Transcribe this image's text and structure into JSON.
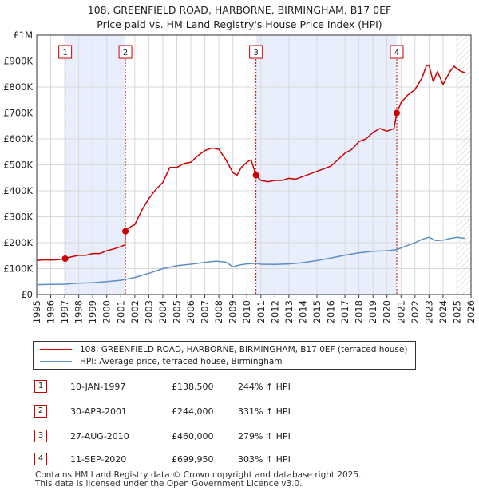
{
  "title_line1": "108, GREENFIELD ROAD, HARBORNE, BIRMINGHAM, B17 0EF",
  "title_line2": "Price paid vs. HM Land Registry's House Price Index (HPI)",
  "legend": {
    "property_label": "108, GREENFIELD ROAD, HARBORNE, BIRMINGHAM, B17 0EF (terraced house)",
    "hpi_label": "HPI: Average price, terraced house, Birmingham"
  },
  "transactions": [
    {
      "num": "1",
      "date": "10-JAN-1997",
      "price": "£138,500",
      "hpi": "244% ↑ HPI"
    },
    {
      "num": "2",
      "date": "30-APR-2001",
      "price": "£244,000",
      "hpi": "331% ↑ HPI"
    },
    {
      "num": "3",
      "date": "27-AUG-2010",
      "price": "£460,000",
      "hpi": "279% ↑ HPI"
    },
    {
      "num": "4",
      "date": "11-SEP-2020",
      "price": "£699,950",
      "hpi": "303% ↑ HPI"
    }
  ],
  "footer_line1": "Contains HM Land Registry data © Crown copyright and database right 2025.",
  "footer_line2": "This data is licensed under the Open Government Licence v3.0.",
  "colors": {
    "property": "#cc0000",
    "hpi": "#5b8ec7",
    "shade": "#e8eefb",
    "grid": "#d9d9d9"
  },
  "chart_data": {
    "type": "line",
    "title": "Price paid vs. HM Land Registry's House Price Index (HPI)",
    "xlabel": "",
    "ylabel": "",
    "xlim": [
      1995,
      2026
    ],
    "ylim": [
      0,
      1000000
    ],
    "y_ticks": [
      {
        "value": 0,
        "label": "£0"
      },
      {
        "value": 100000,
        "label": "£100K"
      },
      {
        "value": 200000,
        "label": "£200K"
      },
      {
        "value": 300000,
        "label": "£300K"
      },
      {
        "value": 400000,
        "label": "£400K"
      },
      {
        "value": 500000,
        "label": "£500K"
      },
      {
        "value": 600000,
        "label": "£600K"
      },
      {
        "value": 700000,
        "label": "£700K"
      },
      {
        "value": 800000,
        "label": "£800K"
      },
      {
        "value": 900000,
        "label": "£900K"
      },
      {
        "value": 1000000,
        "label": "£1M"
      }
    ],
    "x_ticks": [
      "1995",
      "1996",
      "1997",
      "1998",
      "1999",
      "2000",
      "2001",
      "2002",
      "2003",
      "2004",
      "2005",
      "2006",
      "2007",
      "2008",
      "2009",
      "2010",
      "2011",
      "2012",
      "2013",
      "2014",
      "2015",
      "2016",
      "2017",
      "2018",
      "2019",
      "2020",
      "2021",
      "2022",
      "2023",
      "2024",
      "2025",
      "2026"
    ],
    "shaded_periods": [
      [
        1997.03,
        2001.33
      ],
      [
        2010.65,
        2020.7
      ]
    ],
    "forecast_start": 2025.0,
    "series": [
      {
        "name": "108, GREENFIELD ROAD, HARBORNE, BIRMINGHAM, B17 0EF (terraced house)",
        "x": [
          1995,
          1995.5,
          1996,
          1996.5,
          1997.03,
          1997.5,
          1998,
          1998.5,
          1999,
          1999.5,
          2000,
          2000.5,
          2001,
          2001.3,
          2001.33,
          2001.6,
          2002,
          2002.5,
          2003,
          2003.5,
          2004,
          2004.5,
          2005,
          2005.5,
          2006,
          2006.5,
          2007,
          2007.5,
          2008,
          2008.5,
          2009,
          2009.3,
          2009.6,
          2010,
          2010.3,
          2010.65,
          2011,
          2011.5,
          2012,
          2012.5,
          2013,
          2013.5,
          2014,
          2014.5,
          2015,
          2015.5,
          2016,
          2016.5,
          2017,
          2017.5,
          2018,
          2018.5,
          2019,
          2019.5,
          2020,
          2020.5,
          2020.7,
          2021,
          2021.5,
          2022,
          2022.5,
          2022.8,
          2023,
          2023.3,
          2023.6,
          2024,
          2024.5,
          2024.8,
          2025,
          2025.3,
          2025.6
        ],
        "values": [
          131000,
          134000,
          133000,
          134000,
          138500,
          146000,
          151000,
          151000,
          158000,
          158000,
          169000,
          176000,
          185000,
          192000,
          244000,
          258000,
          270000,
          325000,
          370000,
          405000,
          432000,
          490000,
          490000,
          505000,
          510000,
          535000,
          555000,
          565000,
          560000,
          520000,
          470000,
          460000,
          490000,
          510000,
          520000,
          460000,
          440000,
          435000,
          440000,
          440000,
          448000,
          445000,
          455000,
          465000,
          475000,
          485000,
          495000,
          520000,
          545000,
          560000,
          590000,
          600000,
          625000,
          640000,
          630000,
          640000,
          699950,
          740000,
          770000,
          790000,
          835000,
          880000,
          885000,
          820000,
          860000,
          810000,
          860000,
          880000,
          870000,
          860000,
          855000
        ]
      },
      {
        "name": "HPI: Average price, terraced house, Birmingham",
        "x": [
          1995,
          1996,
          1997,
          1998,
          1999,
          2000,
          2001,
          2002,
          2003,
          2004,
          2005,
          2006,
          2007,
          2007.8,
          2008.5,
          2009,
          2009.5,
          2010,
          2010.65,
          2011,
          2012,
          2013,
          2014,
          2015,
          2016,
          2017,
          2018,
          2019,
          2020,
          2020.7,
          2021,
          2021.5,
          2022,
          2022.5,
          2023,
          2023.5,
          2024,
          2024.5,
          2025,
          2025.6
        ],
        "values": [
          38000,
          39000,
          40000,
          44000,
          46000,
          50000,
          55000,
          66000,
          82000,
          100000,
          111000,
          117000,
          124000,
          129000,
          125000,
          107000,
          114000,
          118000,
          121000,
          117000,
          116000,
          118000,
          123000,
          131000,
          141000,
          152000,
          161000,
          167000,
          169000,
          173000,
          180000,
          190000,
          200000,
          213000,
          221000,
          208000,
          210000,
          216000,
          221000,
          216000
        ]
      }
    ],
    "sale_markers": [
      {
        "num": "1",
        "x": 1997.03,
        "y": 138500
      },
      {
        "num": "2",
        "x": 2001.33,
        "y": 244000
      },
      {
        "num": "3",
        "x": 2010.65,
        "y": 460000
      },
      {
        "num": "4",
        "x": 2020.7,
        "y": 699950
      }
    ]
  }
}
